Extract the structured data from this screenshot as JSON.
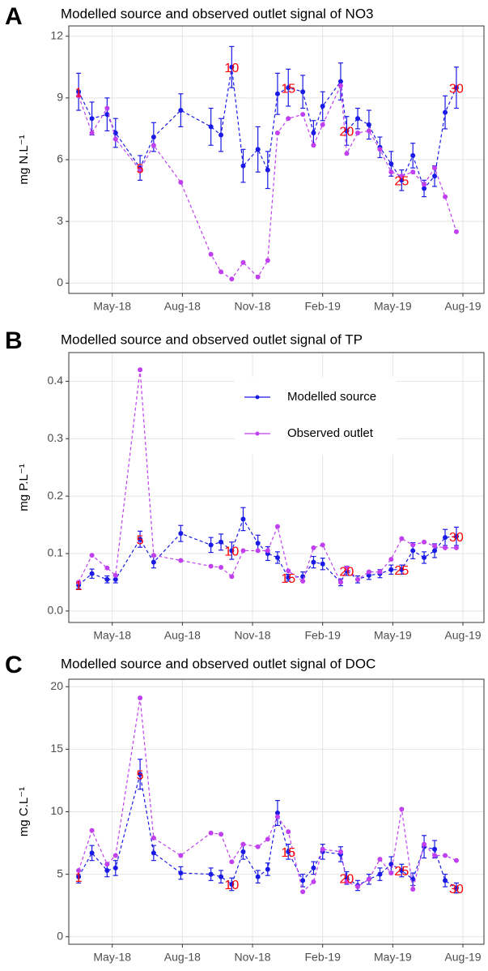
{
  "chart_data": [
    {
      "type": "line",
      "panel_label": "A",
      "title": "Modelled source and observed outlet signal of NO3",
      "ylabel": "mg N.L⁻¹",
      "x": [
        3.56,
        4.13,
        4.78,
        5.14,
        6.19,
        6.77,
        7.93,
        9.22,
        9.65,
        10.11,
        10.6,
        11.23,
        11.65,
        12.07,
        12.53,
        13.15,
        13.61,
        14.0,
        14.77,
        15.03,
        15.5,
        15.98,
        16.45,
        16.93,
        17.38,
        17.86,
        18.34,
        18.79,
        19.24,
        19.72
      ],
      "series": [
        {
          "color": "#1a1ae6",
          "values": [
            9.3,
            8.0,
            8.2,
            7.3,
            5.6,
            7.1,
            8.4,
            7.6,
            7.2,
            10.5,
            5.7,
            6.5,
            5.5,
            9.2,
            9.5,
            9.3,
            7.3,
            8.6,
            9.8,
            7.4,
            8.0,
            7.7,
            6.6,
            5.8,
            5.0,
            6.2,
            4.6,
            5.2,
            8.3,
            9.5
          ],
          "errors": [
            0.9,
            0.8,
            0.8,
            0.7,
            0.6,
            0.7,
            0.8,
            0.9,
            0.8,
            1.0,
            0.8,
            1.1,
            0.9,
            1.0,
            0.9,
            0.8,
            0.6,
            0.7,
            0.9,
            0.7,
            0.5,
            0.7,
            0.5,
            0.6,
            0.5,
            0.6,
            0.4,
            0.5,
            0.8,
            1.0
          ]
        },
        {
          "color": "#c040f0",
          "values": [
            9.1,
            7.3,
            8.5,
            7.0,
            5.5,
            6.7,
            4.9,
            1.4,
            0.55,
            0.2,
            1.0,
            0.3,
            1.1,
            7.3,
            8.0,
            8.2,
            6.7,
            7.7,
            9.6,
            6.3,
            7.3,
            7.4,
            6.5,
            5.4,
            5.2,
            5.4,
            4.8,
            5.6,
            4.2,
            2.5
          ]
        }
      ],
      "point_labels": [
        1,
        5,
        10,
        15,
        20,
        25,
        30
      ],
      "xlim": [
        3.14,
        20.9
      ],
      "xticks": [
        {
          "value": 5,
          "label": "May-18"
        },
        {
          "value": 8,
          "label": "Aug-18"
        },
        {
          "value": 11,
          "label": "Nov-18"
        },
        {
          "value": 14,
          "label": "Feb-19"
        },
        {
          "value": 17,
          "label": "May-19"
        },
        {
          "value": 20,
          "label": "Aug-19"
        }
      ],
      "ylim": [
        -0.5,
        12.5
      ],
      "yticks": [
        0,
        3,
        6,
        9,
        12
      ],
      "grid": true
    },
    {
      "type": "line",
      "panel_label": "B",
      "title": "Modelled source and observed outlet signal of TP",
      "ylabel": "mg P.L⁻¹",
      "x": [
        3.56,
        4.13,
        4.78,
        5.14,
        6.19,
        6.77,
        7.93,
        9.22,
        9.65,
        10.11,
        10.6,
        11.23,
        11.65,
        12.07,
        12.53,
        13.15,
        13.61,
        14.0,
        14.77,
        15.03,
        15.5,
        15.98,
        16.45,
        16.93,
        17.38,
        17.86,
        18.34,
        18.79,
        19.24,
        19.72
      ],
      "series": [
        {
          "name": "Modelled source",
          "color": "#1a1ae6",
          "values": [
            0.045,
            0.065,
            0.055,
            0.055,
            0.125,
            0.085,
            0.135,
            0.115,
            0.12,
            0.105,
            0.16,
            0.118,
            0.1,
            0.093,
            0.058,
            0.06,
            0.085,
            0.082,
            0.05,
            0.07,
            0.055,
            0.062,
            0.065,
            0.072,
            0.072,
            0.105,
            0.093,
            0.105,
            0.128,
            0.13
          ],
          "errors": [
            0.006,
            0.008,
            0.006,
            0.006,
            0.014,
            0.01,
            0.014,
            0.013,
            0.014,
            0.015,
            0.02,
            0.014,
            0.012,
            0.01,
            0.006,
            0.008,
            0.01,
            0.01,
            0.006,
            0.008,
            0.006,
            0.007,
            0.007,
            0.008,
            0.008,
            0.014,
            0.01,
            0.012,
            0.014,
            0.016
          ]
        },
        {
          "name": "Observed outlet",
          "color": "#c040f0",
          "values": [
            0.05,
            0.097,
            0.075,
            0.062,
            0.42,
            0.097,
            0.088,
            0.078,
            0.076,
            0.06,
            0.105,
            0.105,
            0.105,
            0.147,
            0.07,
            0.052,
            0.11,
            0.115,
            0.05,
            0.075,
            0.055,
            0.068,
            0.068,
            0.09,
            0.126,
            0.115,
            0.12,
            0.113,
            0.11,
            0.11
          ]
        }
      ],
      "legend": "top-right",
      "point_labels": [
        1,
        5,
        10,
        15,
        20,
        25,
        30
      ],
      "xlim": [
        3.14,
        20.9
      ],
      "xticks": [
        {
          "value": 5,
          "label": "May-18"
        },
        {
          "value": 8,
          "label": "Aug-18"
        },
        {
          "value": 11,
          "label": "Nov-18"
        },
        {
          "value": 14,
          "label": "Feb-19"
        },
        {
          "value": 17,
          "label": "May-19"
        },
        {
          "value": 20,
          "label": "Aug-19"
        }
      ],
      "ylim": [
        -0.02,
        0.45
      ],
      "yticks": [
        {
          "value": 0,
          "label": "0.0"
        },
        0.1,
        0.2,
        0.3,
        0.4
      ],
      "grid": true
    },
    {
      "type": "line",
      "panel_label": "C",
      "title": "Modelled source and observed outlet signal of DOC",
      "ylabel": "mg C.L⁻¹",
      "x": [
        3.56,
        4.13,
        4.78,
        5.14,
        6.19,
        6.77,
        7.93,
        9.22,
        9.65,
        10.11,
        10.6,
        11.23,
        11.65,
        12.07,
        12.53,
        13.15,
        13.61,
        14.0,
        14.77,
        15.03,
        15.5,
        15.98,
        16.45,
        16.93,
        17.38,
        17.86,
        18.34,
        18.79,
        19.24,
        19.72
      ],
      "series": [
        {
          "color": "#1a1ae6",
          "values": [
            4.8,
            6.7,
            5.3,
            5.5,
            13.0,
            6.7,
            5.1,
            5.0,
            4.8,
            4.2,
            6.8,
            4.8,
            5.4,
            9.9,
            6.8,
            4.5,
            5.5,
            6.8,
            6.6,
            4.7,
            4.1,
            4.6,
            5.0,
            5.8,
            5.3,
            4.6,
            7.2,
            7.0,
            4.5,
            3.9
          ],
          "errors": [
            0.5,
            0.6,
            0.5,
            0.6,
            1.2,
            0.6,
            0.5,
            0.5,
            0.5,
            0.5,
            0.6,
            0.5,
            0.5,
            1.0,
            0.6,
            0.5,
            0.5,
            0.6,
            0.6,
            0.5,
            0.4,
            0.4,
            0.5,
            0.6,
            0.5,
            0.5,
            0.9,
            0.7,
            0.5,
            0.4
          ]
        },
        {
          "color": "#c040f0",
          "values": [
            5.3,
            8.5,
            5.8,
            6.5,
            19.1,
            7.9,
            6.5,
            8.3,
            8.2,
            6.0,
            7.4,
            7.2,
            7.8,
            9.6,
            8.4,
            3.6,
            4.4,
            7.0,
            6.8,
            4.4,
            4.0,
            4.6,
            6.2,
            5.1,
            10.2,
            3.8,
            7.4,
            6.5,
            6.5,
            6.1
          ]
        }
      ],
      "point_labels": [
        1,
        5,
        10,
        15,
        20,
        25,
        30
      ],
      "xlim": [
        3.14,
        20.9
      ],
      "xticks": [
        {
          "value": 5,
          "label": "May-18"
        },
        {
          "value": 8,
          "label": "Aug-18"
        },
        {
          "value": 11,
          "label": "Nov-18"
        },
        {
          "value": 14,
          "label": "Feb-19"
        },
        {
          "value": 17,
          "label": "May-19"
        },
        {
          "value": 20,
          "label": "Aug-19"
        }
      ],
      "ylim": [
        -0.6,
        20.6
      ],
      "yticks": [
        0,
        5,
        10,
        15,
        20
      ],
      "grid": true
    }
  ]
}
